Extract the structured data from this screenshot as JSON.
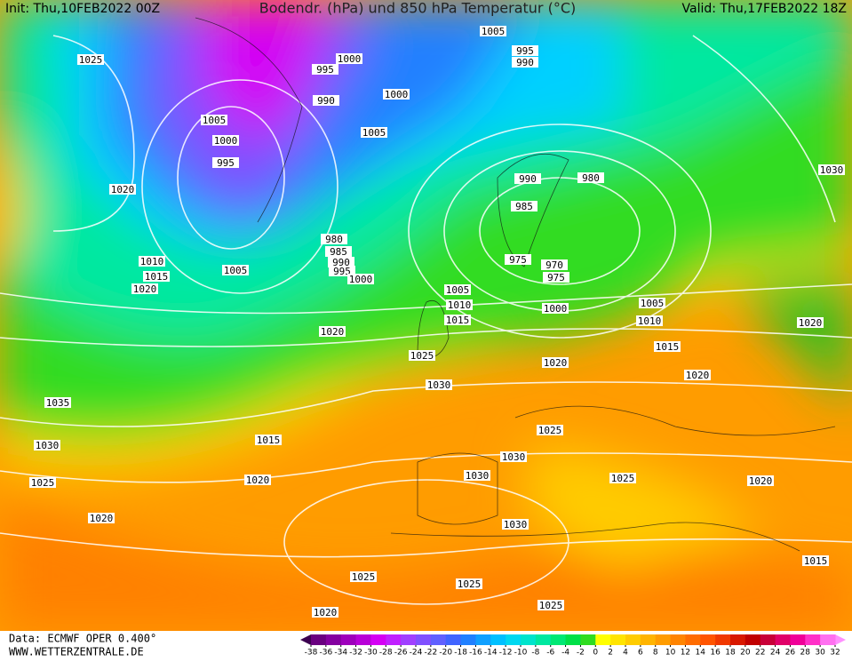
{
  "header": {
    "init": "Init: Thu,10FEB2022 00Z",
    "title": "Bodendr. (hPa) und 850 hPa Temperatur (°C)",
    "valid": "Valid: Thu,17FEB2022 18Z"
  },
  "footer": {
    "source": "Data: ECMWF OPER 0.400°",
    "website": "WWW.WETTERZENTRALE.DE"
  },
  "colorbar": {
    "ticks": [
      -38,
      -36,
      -34,
      -32,
      -30,
      -28,
      -26,
      -24,
      -22,
      -20,
      -18,
      -16,
      -14,
      -12,
      -10,
      -8,
      -6,
      -4,
      -2,
      0,
      2,
      4,
      6,
      8,
      10,
      12,
      14,
      16,
      18,
      20,
      22,
      24,
      26,
      28,
      30,
      32
    ],
    "colors": [
      "#6a0080",
      "#8400a0",
      "#9e00bc",
      "#b800d8",
      "#d400f4",
      "#c020ff",
      "#a040ff",
      "#8050ff",
      "#6060ff",
      "#4064ff",
      "#2080ff",
      "#10a0ff",
      "#00c0ff",
      "#00d8f0",
      "#00e4cc",
      "#00e8a0",
      "#00e874",
      "#00e048",
      "#30dc20",
      "#ffff00",
      "#ffe400",
      "#ffcc00",
      "#ffb400",
      "#ff9c00",
      "#ff8400",
      "#ff6c00",
      "#ff5400",
      "#f03800",
      "#d81800",
      "#c00000",
      "#c80038",
      "#e00068",
      "#f00098",
      "#ff30c8",
      "#ff70f0"
    ],
    "low_color": "#3c0050",
    "high_color": "#ff90ff"
  },
  "isobar_labels": [
    1025,
    1005,
    1000,
    995,
    1020,
    995,
    990,
    1000,
    1000,
    1005,
    1005,
    995,
    990,
    990,
    980,
    985,
    980,
    985,
    990,
    995,
    1000,
    1010,
    1015,
    1020,
    1005,
    975,
    970,
    975,
    1005,
    1010,
    1015,
    1000,
    1005,
    1010,
    1015,
    1020,
    1025,
    1020,
    1030,
    1020,
    1020,
    1030,
    1035,
    1030,
    1015,
    1025,
    1020,
    1030,
    1030,
    1025,
    1020,
    1025,
    1020,
    1030,
    1025,
    1025,
    1025,
    1020,
    1015
  ]
}
